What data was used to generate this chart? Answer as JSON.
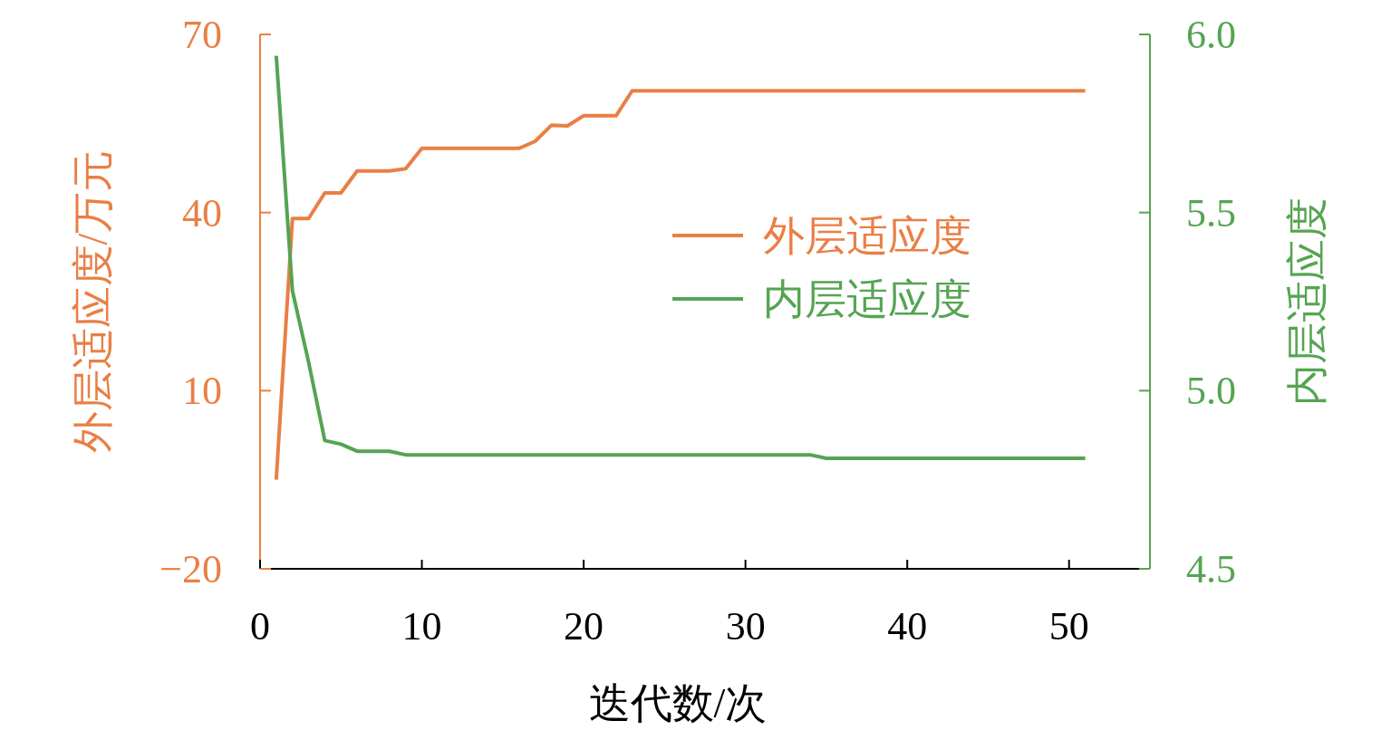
{
  "chart_data": {
    "type": "line",
    "xlabel": "迭代数/次",
    "ylabel": "外层适应度/万元",
    "y2label": "内层适应度",
    "x": [
      1,
      2,
      3,
      4,
      5,
      6,
      7,
      8,
      9,
      10,
      11,
      12,
      13,
      14,
      15,
      16,
      17,
      18,
      19,
      20,
      21,
      22,
      23,
      24,
      25,
      26,
      27,
      28,
      29,
      30,
      31,
      32,
      33,
      34,
      35,
      36,
      37,
      38,
      39,
      40,
      41,
      42,
      43,
      44,
      45,
      46,
      47,
      48,
      49,
      50,
      51
    ],
    "series": [
      {
        "name": "外层适应度",
        "color": "#e97f45",
        "values": [
          -5,
          39,
          39,
          43.3,
          43.3,
          47,
          47,
          47,
          47.4,
          50.8,
          50.8,
          50.8,
          50.8,
          50.8,
          50.8,
          50.8,
          52,
          54.7,
          54.6,
          56.3,
          56.3,
          56.3,
          60.5,
          60.5,
          60.5,
          60.5,
          60.5,
          60.5,
          60.5,
          60.5,
          60.5,
          60.5,
          60.5,
          60.5,
          60.5,
          60.5,
          60.5,
          60.5,
          60.5,
          60.5,
          60.5,
          60.5,
          60.5,
          60.5,
          60.5,
          60.5,
          60.5,
          60.5,
          60.5,
          60.5,
          60.5
        ]
      },
      {
        "name": "内层适应度",
        "color": "#55a452",
        "axis": "y2",
        "values": [
          5.94,
          5.28,
          5.08,
          4.86,
          4.85,
          4.83,
          4.83,
          4.83,
          4.82,
          4.82,
          4.82,
          4.82,
          4.82,
          4.82,
          4.82,
          4.82,
          4.82,
          4.82,
          4.82,
          4.82,
          4.82,
          4.82,
          4.82,
          4.82,
          4.82,
          4.82,
          4.82,
          4.82,
          4.82,
          4.82,
          4.82,
          4.82,
          4.82,
          4.82,
          4.81,
          4.81,
          4.81,
          4.81,
          4.81,
          4.81,
          4.81,
          4.81,
          4.81,
          4.81,
          4.81,
          4.81,
          4.81,
          4.81,
          4.81,
          4.81,
          4.81
        ]
      }
    ],
    "xlim": [
      0,
      55
    ],
    "xticks": [
      0,
      10,
      20,
      30,
      40,
      50
    ],
    "ylim": [
      -20,
      70
    ],
    "yticks": [
      {
        "value": -20,
        "label": "−20"
      },
      10,
      40,
      70
    ],
    "y2lim": [
      4.5,
      6
    ],
    "y2ticks": [
      4.5,
      {
        "value": 5,
        "label": "5.0"
      },
      5.5,
      {
        "value": 6,
        "label": "6.0"
      }
    ],
    "legend": "right"
  }
}
